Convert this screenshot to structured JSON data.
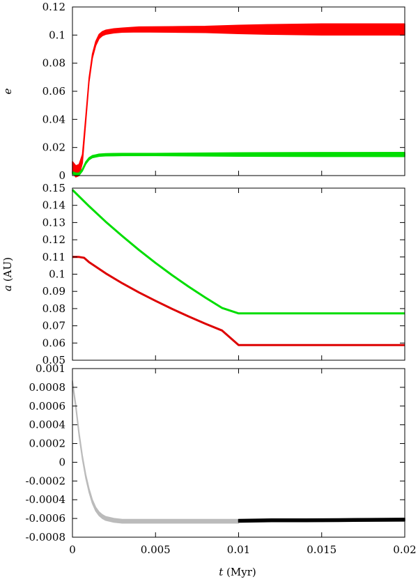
{
  "chart_data": [
    {
      "type": "line",
      "panel": "top",
      "ylabel": "e",
      "xlim": [
        0,
        0.02
      ],
      "ylim": [
        0,
        0.12
      ],
      "yticks": [
        "0",
        "0.02",
        "0.04",
        "0.06",
        "0.08",
        "0.1",
        "0.12"
      ],
      "grid": false,
      "series": [
        {
          "color": "#ff0000",
          "x": [
            0,
            0.0002,
            0.0004,
            0.0006,
            0.0008,
            0.001,
            0.0012,
            0.0014,
            0.0016,
            0.0018,
            0.002,
            0.0025,
            0.003,
            0.004,
            0.006,
            0.008,
            0.01,
            0.012,
            0.015,
            0.018,
            0.02
          ],
          "y": [
            0.006,
            0.003,
            0.004,
            0.012,
            0.04,
            0.068,
            0.085,
            0.094,
            0.099,
            0.101,
            0.102,
            0.103,
            0.1035,
            0.104,
            0.104,
            0.104,
            0.104,
            0.104,
            0.104,
            0.104,
            0.104
          ],
          "band_halfwidth": [
            0.004,
            0.004,
            0.004,
            0.003,
            0.002,
            0.0015,
            0.0015,
            0.0015,
            0.0015,
            0.0015,
            0.0015,
            0.0015,
            0.0015,
            0.0018,
            0.002,
            0.0022,
            0.003,
            0.0035,
            0.004,
            0.004,
            0.004
          ]
        },
        {
          "color": "#00dd00",
          "x": [
            0,
            0.0002,
            0.0004,
            0.0006,
            0.0008,
            0.001,
            0.0012,
            0.0014,
            0.0016,
            0.002,
            0.0025,
            0.003,
            0.005,
            0.01,
            0.015,
            0.02
          ],
          "y": [
            0.002,
            0.001,
            0.001,
            0.004,
            0.009,
            0.012,
            0.0135,
            0.014,
            0.0145,
            0.0148,
            0.0149,
            0.015,
            0.015,
            0.015,
            0.015,
            0.015
          ],
          "band_halfwidth": [
            0.0008,
            0.0008,
            0.0008,
            0.0008,
            0.0008,
            0.0008,
            0.0008,
            0.0008,
            0.0008,
            0.0008,
            0.0008,
            0.0008,
            0.0008,
            0.0012,
            0.0014,
            0.0015
          ]
        }
      ]
    },
    {
      "type": "line",
      "panel": "middle",
      "ylabel": "a (AU)",
      "xlim": [
        0,
        0.02
      ],
      "ylim": [
        0.05,
        0.15
      ],
      "yticks": [
        "0.05",
        "0.06",
        "0.07",
        "0.08",
        "0.09",
        "0.1",
        "0.11",
        "0.12",
        "0.13",
        "0.14",
        "0.15"
      ],
      "grid": false,
      "series": [
        {
          "color": "#00dd00",
          "x": [
            0,
            0.001,
            0.002,
            0.003,
            0.004,
            0.005,
            0.006,
            0.007,
            0.008,
            0.009,
            0.01,
            0.015,
            0.02
          ],
          "y": [
            0.149,
            0.1395,
            0.1305,
            0.1221,
            0.1141,
            0.1065,
            0.0994,
            0.0927,
            0.0864,
            0.0804,
            0.0772,
            0.0772,
            0.0772
          ]
        },
        {
          "color": "#dd0000",
          "x": [
            0,
            0.0004,
            0.0007,
            0.001,
            0.002,
            0.003,
            0.004,
            0.005,
            0.006,
            0.007,
            0.008,
            0.009,
            0.01,
            0.015,
            0.02
          ],
          "y": [
            0.11,
            0.11,
            0.1095,
            0.107,
            0.1005,
            0.0947,
            0.0894,
            0.0845,
            0.0798,
            0.0754,
            0.0712,
            0.0673,
            0.0588,
            0.0588,
            0.0588
          ]
        }
      ]
    },
    {
      "type": "line",
      "panel": "bottom",
      "ylabel": "",
      "xlabel": "t (Myr)",
      "xlim": [
        0,
        0.02
      ],
      "ylim": [
        -0.0008,
        0.001
      ],
      "yticks": [
        "-0.0008",
        "-0.0006",
        "-0.0004",
        "-0.0002",
        "0",
        "0.0002",
        "0.0004",
        "0.0006",
        "0.0008",
        "0.001"
      ],
      "xticks": [
        "0",
        "0.005",
        "0.01",
        "0.015",
        "0.02"
      ],
      "grid": false,
      "series": [
        {
          "color": "#bbbbbb",
          "x": [
            0,
            0.0002,
            0.0004,
            0.0006,
            0.0008,
            0.001,
            0.0012,
            0.0014,
            0.0016,
            0.0018,
            0.002,
            0.0025,
            0.003,
            0.004,
            0.005,
            0.006,
            0.008,
            0.01
          ],
          "y": [
            0.00085,
            0.0006,
            0.0003,
            5e-05,
            -0.00015,
            -0.0003,
            -0.00042,
            -0.0005,
            -0.00055,
            -0.00058,
            -0.0006,
            -0.00062,
            -0.00063,
            -0.00063,
            -0.00063,
            -0.00063,
            -0.00063,
            -0.00063
          ],
          "band_halfwidth": [
            2e-05,
            2e-05,
            2e-05,
            2e-05,
            2e-05,
            2e-05,
            2e-05,
            2e-05,
            2e-05,
            2e-05,
            2e-05,
            2e-05,
            2e-05,
            2e-05,
            2e-05,
            2e-05,
            2e-05,
            2e-05
          ]
        },
        {
          "color": "#000000",
          "x": [
            0.01,
            0.012,
            0.014,
            0.016,
            0.018,
            0.02
          ],
          "y": [
            -0.000625,
            -0.00062,
            -0.00062,
            -0.000618,
            -0.000615,
            -0.000613
          ],
          "band_halfwidth": [
            1.5e-05,
            1.5e-05,
            1.5e-05,
            1.5e-05,
            1.5e-05,
            1.5e-05
          ]
        }
      ]
    }
  ]
}
